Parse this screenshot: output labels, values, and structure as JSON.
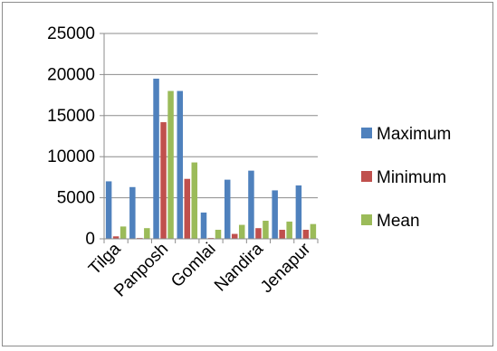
{
  "chart_data": {
    "type": "bar",
    "categories": [
      "Tilga",
      "",
      "Panposh",
      "",
      "Gomlai",
      "",
      "Nandira",
      "",
      "Jenapur"
    ],
    "series": [
      {
        "name": "Maximum",
        "values": [
          7000,
          6300,
          19500,
          18000,
          3200,
          7200,
          8300,
          5900,
          6500
        ]
      },
      {
        "name": "Minimum",
        "values": [
          300,
          100,
          14200,
          7300,
          100,
          600,
          1300,
          1100,
          1100
        ]
      },
      {
        "name": "Mean",
        "values": [
          1500,
          1300,
          18000,
          9300,
          1100,
          1700,
          2200,
          2100,
          1800
        ]
      }
    ],
    "yticks": [
      "0",
      "5000",
      "10000",
      "15000",
      "20000",
      "25000"
    ],
    "ylim": [
      0,
      25000
    ],
    "title": "",
    "xlabel": "",
    "ylabel": "",
    "grid": true,
    "legend_position": "right",
    "colors": [
      "#4f81bd",
      "#c0504d",
      "#9bbb59"
    ]
  }
}
